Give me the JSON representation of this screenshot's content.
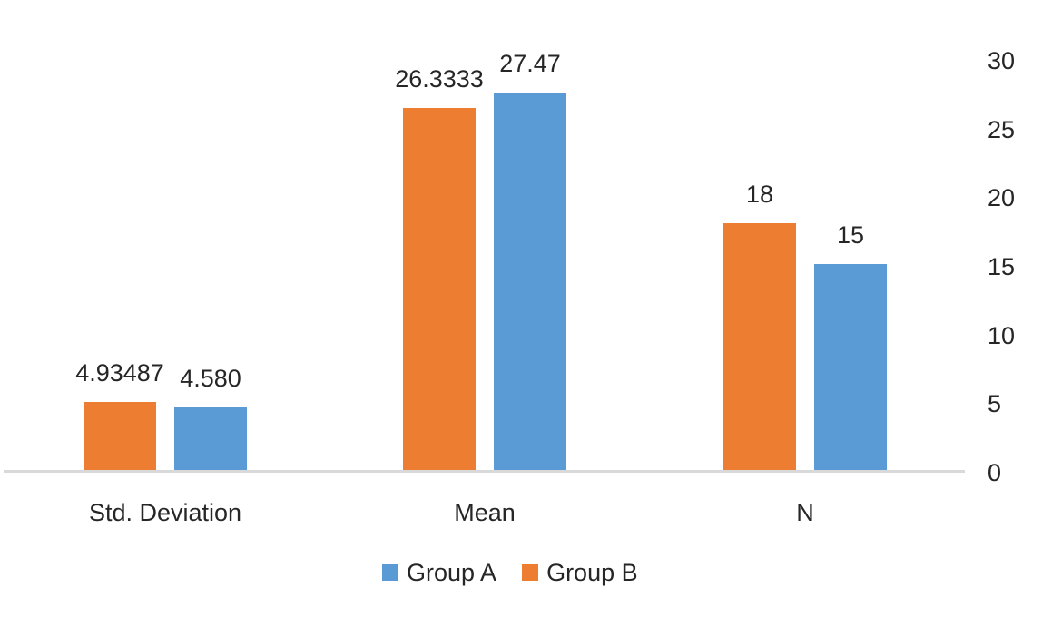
{
  "chart_data": {
    "type": "bar",
    "title": "",
    "categories": [
      "Std. Deviation",
      "Mean",
      "N"
    ],
    "series": [
      {
        "name": "Group B",
        "color": "#ED7D31",
        "values": [
          4.93487,
          26.3333,
          18
        ],
        "labels": [
          "4.93487",
          "26.3333",
          "18"
        ]
      },
      {
        "name": "Group A",
        "color": "#5B9BD5",
        "values": [
          4.58,
          27.47,
          15
        ],
        "labels": [
          "4.580",
          "27.47",
          "15"
        ]
      }
    ],
    "bar_order_note": "series array order = left-to-right bar order within each category group",
    "legend": {
      "position": "bottom",
      "order": [
        "Group A",
        "Group B"
      ]
    },
    "value_axis": {
      "side": "right",
      "min": 0,
      "max": 30,
      "ticks": [
        0,
        5,
        10,
        15,
        20,
        25,
        30
      ]
    },
    "gridlines": false,
    "colors": {
      "axis_line": "#D9D9D9",
      "text": "#262626",
      "background": "#FFFFFF"
    }
  }
}
